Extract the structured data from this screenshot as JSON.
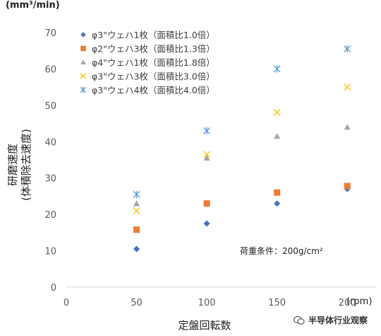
{
  "chart_data": {
    "type": "scatter",
    "title": "",
    "y_unit": "(mm³/min)",
    "x_unit": "(rpm)",
    "ylabel_line1": "研磨速度",
    "ylabel_line2": "(体積除去速度)",
    "xlabel": "定盤回転数",
    "xlim": [
      0,
      220
    ],
    "ylim": [
      0,
      70
    ],
    "x_ticks": [
      0,
      50,
      100,
      150,
      200
    ],
    "y_ticks": [
      0,
      10,
      20,
      30,
      40,
      50,
      60,
      70
    ],
    "grid": false,
    "legend_position": "top-left",
    "annotation": "荷重条件：200g/cm²",
    "series": [
      {
        "name": "φ3\"ウェハ1枚（面積比1.0倍）",
        "marker": "diamond",
        "color": "#4472C4",
        "x": [
          50,
          100,
          150,
          200
        ],
        "y": [
          10.5,
          17.5,
          23,
          27
        ]
      },
      {
        "name": "φ2\"ウェハ3枚（面積比1.3倍）",
        "marker": "square",
        "color": "#ED7D31",
        "x": [
          50,
          100,
          150,
          200
        ],
        "y": [
          15.8,
          23,
          26,
          27.8
        ]
      },
      {
        "name": "φ4\"ウェハ1枚（面積比1.8倍）",
        "marker": "triangle",
        "color": "#A5A5A5",
        "x": [
          50,
          100,
          150,
          200
        ],
        "y": [
          23,
          35.5,
          41.5,
          44
        ]
      },
      {
        "name": "φ3\"ウェハ3枚（面積比3.0倍）",
        "marker": "x",
        "color": "#FFC000",
        "x": [
          50,
          100,
          150,
          200
        ],
        "y": [
          21,
          36.5,
          48,
          55
        ]
      },
      {
        "name": "φ3\"ウェハ4枚（面積比4.0倍）",
        "marker": "star",
        "color": "#5B9BD5",
        "x": [
          50,
          100,
          150,
          200
        ],
        "y": [
          25.5,
          43,
          60,
          65.5
        ]
      }
    ]
  },
  "watermark": "半导体行业观察"
}
